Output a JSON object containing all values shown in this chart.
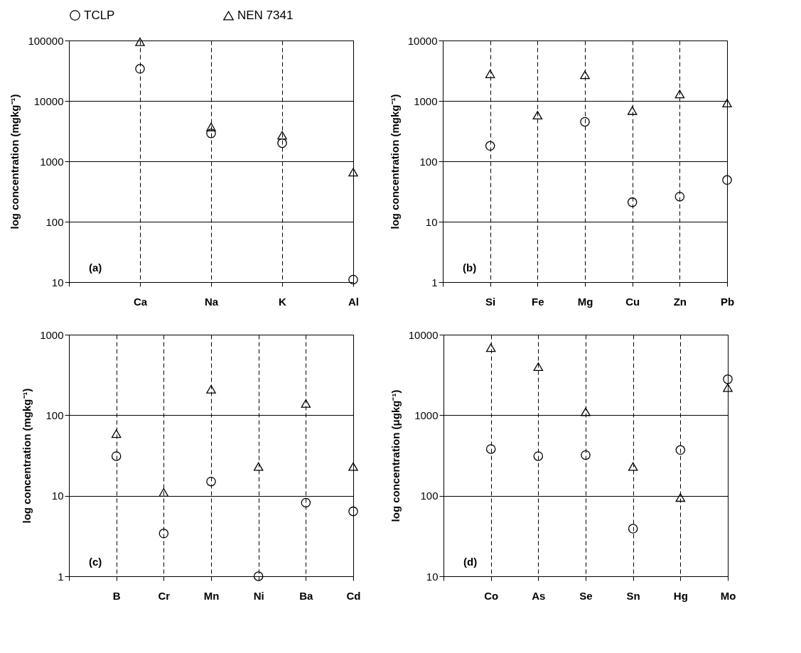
{
  "chart_data": [
    {
      "type": "scatter",
      "categories": [
        null,
        "Ca",
        "Na",
        "K",
        "Al"
      ],
      "ylabel": "log concentration (mgkg⁻¹)",
      "log": true,
      "ylim": [
        10,
        100000
      ],
      "yticks": [
        10,
        100,
        1000,
        10000,
        100000
      ],
      "grid": true,
      "legend": "top",
      "annotations": [
        "(a)"
      ],
      "series": [
        {
          "name": "TCLP",
          "color": "#000000",
          "marker": "circle",
          "values": [
            null,
            34000,
            2900,
            2000,
            11
          ]
        },
        {
          "name": "NEN 7341",
          "color": "#000000",
          "marker": "triangle",
          "values": [
            null,
            95000,
            3700,
            2700,
            660
          ]
        }
      ]
    },
    {
      "type": "scatter",
      "categories": [
        null,
        "Si",
        "Fe",
        "Mg",
        "Cu",
        "Zn",
        "Pb"
      ],
      "ylabel": "log concentration (mgkg⁻¹)",
      "log": true,
      "ylim": [
        1,
        10000
      ],
      "yticks": [
        1,
        10,
        100,
        1000,
        10000
      ],
      "grid": true,
      "legend": "top",
      "annotations": [
        "(b)"
      ],
      "series": [
        {
          "name": "TCLP",
          "color": "#000000",
          "marker": "circle",
          "values": [
            null,
            180,
            null,
            450,
            21,
            26,
            49
          ]
        },
        {
          "name": "NEN 7341",
          "color": "#000000",
          "marker": "triangle",
          "values": [
            null,
            2800,
            580,
            2700,
            690,
            1300,
            920
          ]
        }
      ]
    },
    {
      "type": "scatter",
      "categories": [
        null,
        "B",
        "Cr",
        "Mn",
        "Ni",
        "Ba",
        "Cd"
      ],
      "ylabel": "log concentration (mgkg⁻¹)",
      "log": true,
      "ylim": [
        1,
        1000
      ],
      "yticks": [
        1,
        10,
        100,
        1000
      ],
      "grid": true,
      "legend": "top",
      "annotations": [
        "(c)"
      ],
      "series": [
        {
          "name": "TCLP",
          "color": "#000000",
          "marker": "circle",
          "values": [
            null,
            31,
            3.4,
            15,
            1.0,
            8.2,
            6.4
          ]
        },
        {
          "name": "NEN 7341",
          "color": "#000000",
          "marker": "triangle",
          "values": [
            null,
            59,
            11,
            210,
            23,
            140,
            23
          ]
        }
      ]
    },
    {
      "type": "scatter",
      "categories": [
        null,
        "Co",
        "As",
        "Se",
        "Sn",
        "Hg",
        "Mo"
      ],
      "ylabel": "log concentration (μgkg⁻¹)",
      "log": true,
      "ylim": [
        10,
        10000
      ],
      "yticks": [
        10,
        100,
        1000,
        10000
      ],
      "grid": true,
      "legend": "top",
      "annotations": [
        "(d)"
      ],
      "series": [
        {
          "name": "TCLP",
          "color": "#000000",
          "marker": "circle",
          "values": [
            null,
            380,
            310,
            320,
            39,
            370,
            2800
          ]
        },
        {
          "name": "NEN 7341",
          "color": "#000000",
          "marker": "triangle",
          "values": [
            null,
            6900,
            4000,
            1100,
            230,
            95,
            2200
          ]
        }
      ]
    }
  ]
}
